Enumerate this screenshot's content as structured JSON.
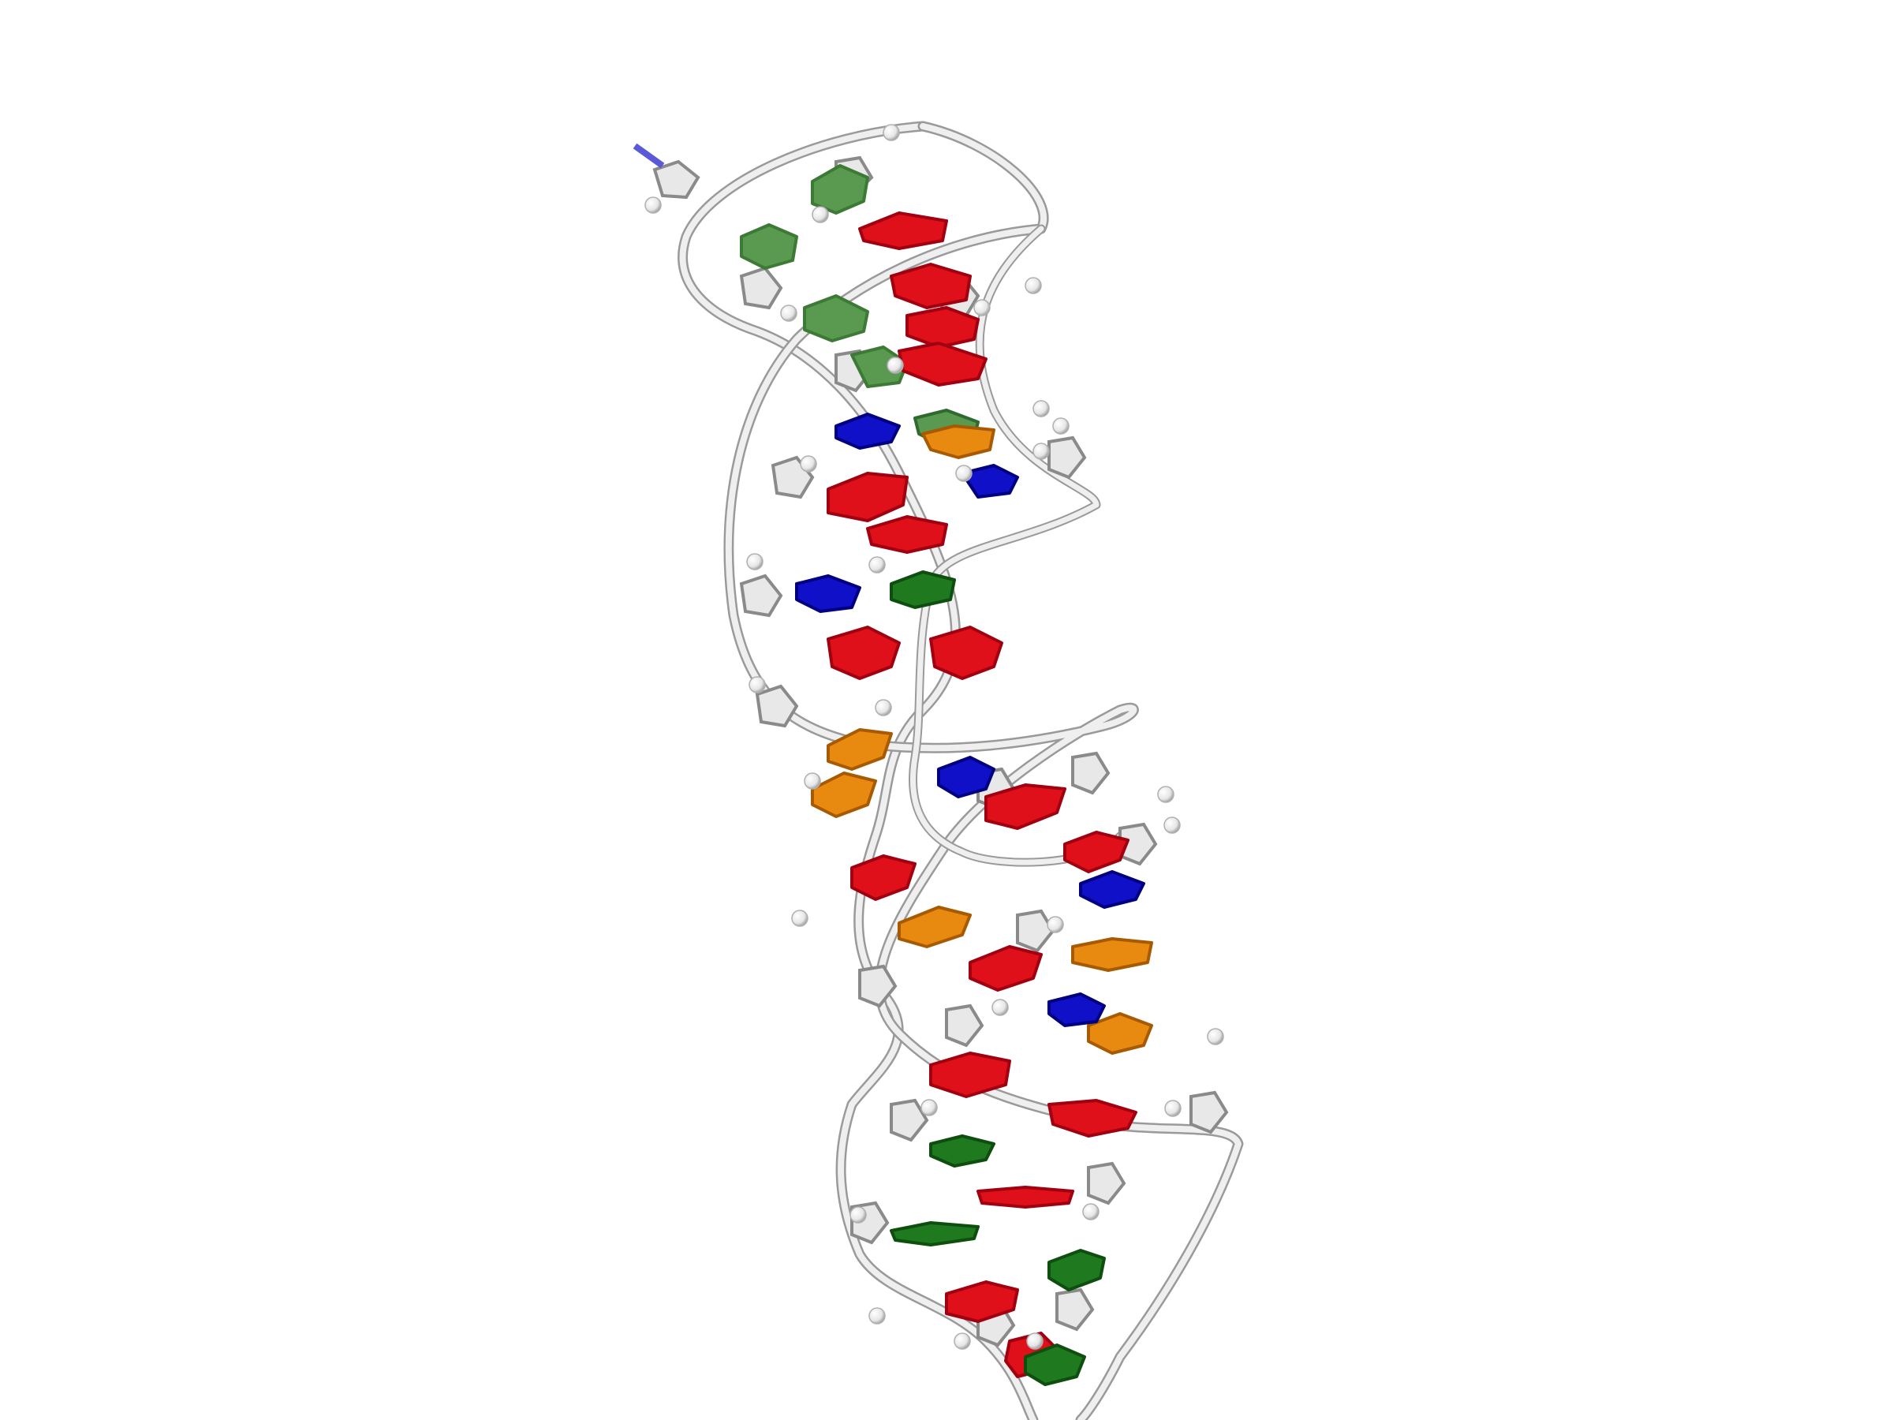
{
  "scene": {
    "background": "#ffffff",
    "representation": "cartoon",
    "backbone_color": "#d9d9d9",
    "backbone_edge": "#9a9a9a",
    "atom_sphere_color": "#f2f2f2",
    "nucleotide_colors": {
      "A": "#e0101a",
      "G": "#1f7a1f",
      "G_light": "#5a9a50",
      "C": "#1010c8",
      "C_light": "#5a5ad8",
      "U": "#e88a10"
    }
  }
}
